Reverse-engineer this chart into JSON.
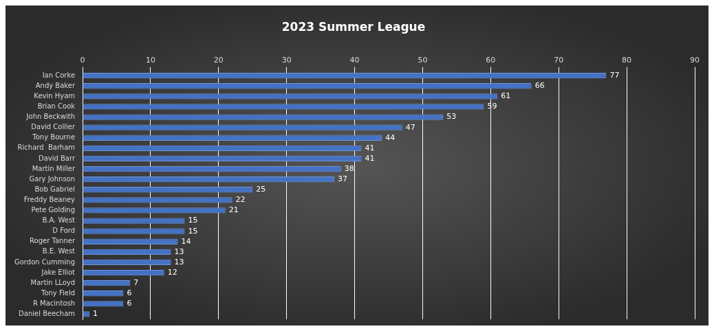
{
  "chart_data": {
    "type": "bar",
    "orientation": "horizontal",
    "title": "2023 Summer League",
    "categories": [
      "Ian Corke",
      "Andy Baker",
      "Kevin Hyam",
      "Brian Cook",
      "John Beckwith",
      "David Collier",
      "Tony Bourne",
      "Richard  Barham",
      "David Barr",
      "Martin Miller",
      "Gary Johnson",
      "Bob Gabriel",
      "Freddy Beaney",
      "Pete Golding",
      "B.A. West",
      "D Ford",
      "Roger Tanner",
      "B.E. West",
      "Gordon Cumming",
      "Jake Elliot",
      "Martin LLoyd",
      "Tony Field",
      "R Macintosh",
      "Daniel Beecham"
    ],
    "values": [
      77,
      66,
      61,
      59,
      53,
      47,
      44,
      41,
      41,
      38,
      37,
      25,
      22,
      21,
      15,
      15,
      14,
      13,
      13,
      12,
      7,
      6,
      6,
      1
    ],
    "color": "#4472c4",
    "xlim": [
      0,
      90
    ],
    "xticks": [
      0,
      10,
      20,
      30,
      40,
      50,
      60,
      70,
      80,
      90
    ],
    "grid": "x",
    "data_labels": true
  }
}
